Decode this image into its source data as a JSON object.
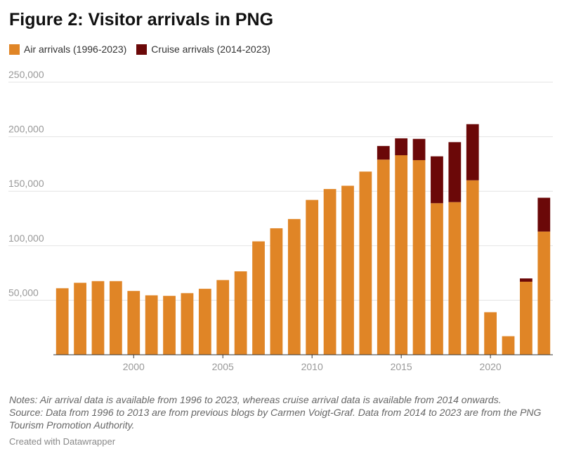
{
  "title": "Figure 2: Visitor arrivals in PNG",
  "legend": [
    {
      "label": "Air arrivals (1996-2023)",
      "color": "#E08526"
    },
    {
      "label": "Cruise arrivals (2014-2023)",
      "color": "#6B0808"
    }
  ],
  "notes": {
    "line1": "Notes: Air arrival data is available from 1996 to 2023, whereas cruise arrival data is available from 2014 onwards.",
    "line2": "Source: Data from 1996 to 2013 are from previous blogs by Carmen Voigt-Graf. Data from 2014 to 2023 are from the PNG Tourism Promotion Authority."
  },
  "credit": "Created with Datawrapper",
  "chart_data": {
    "type": "bar",
    "stacked": true,
    "title": "Figure 2: Visitor arrivals in PNG",
    "xlabel": "",
    "ylabel": "",
    "ylim": [
      0,
      250000
    ],
    "yticks": [
      50000,
      100000,
      150000,
      200000,
      250000
    ],
    "ytick_labels": [
      "50,000",
      "100,000",
      "150,000",
      "200,000",
      "250,000"
    ],
    "xticks": [
      2000,
      2005,
      2010,
      2015,
      2020
    ],
    "grid": true,
    "legend_position": "top-left",
    "categories": [
      1996,
      1997,
      1998,
      1999,
      2000,
      2001,
      2002,
      2003,
      2004,
      2005,
      2006,
      2007,
      2008,
      2009,
      2010,
      2011,
      2012,
      2013,
      2014,
      2015,
      2016,
      2017,
      2018,
      2019,
      2020,
      2021,
      2022,
      2023
    ],
    "series": [
      {
        "name": "Air arrivals (1996-2023)",
        "color": "#E08526",
        "values": [
          61000,
          66000,
          67500,
          67500,
          58500,
          54500,
          54000,
          56500,
          60500,
          68500,
          76500,
          104000,
          116000,
          124500,
          142000,
          152000,
          155000,
          168000,
          179000,
          183000,
          178500,
          139000,
          140000,
          160000,
          39000,
          17000,
          67000,
          113000
        ]
      },
      {
        "name": "Cruise arrivals (2014-2023)",
        "color": "#6B0808",
        "values": [
          0,
          0,
          0,
          0,
          0,
          0,
          0,
          0,
          0,
          0,
          0,
          0,
          0,
          0,
          0,
          0,
          0,
          0,
          12500,
          15500,
          19500,
          43000,
          55000,
          51500,
          0,
          0,
          3000,
          31000
        ]
      }
    ]
  }
}
